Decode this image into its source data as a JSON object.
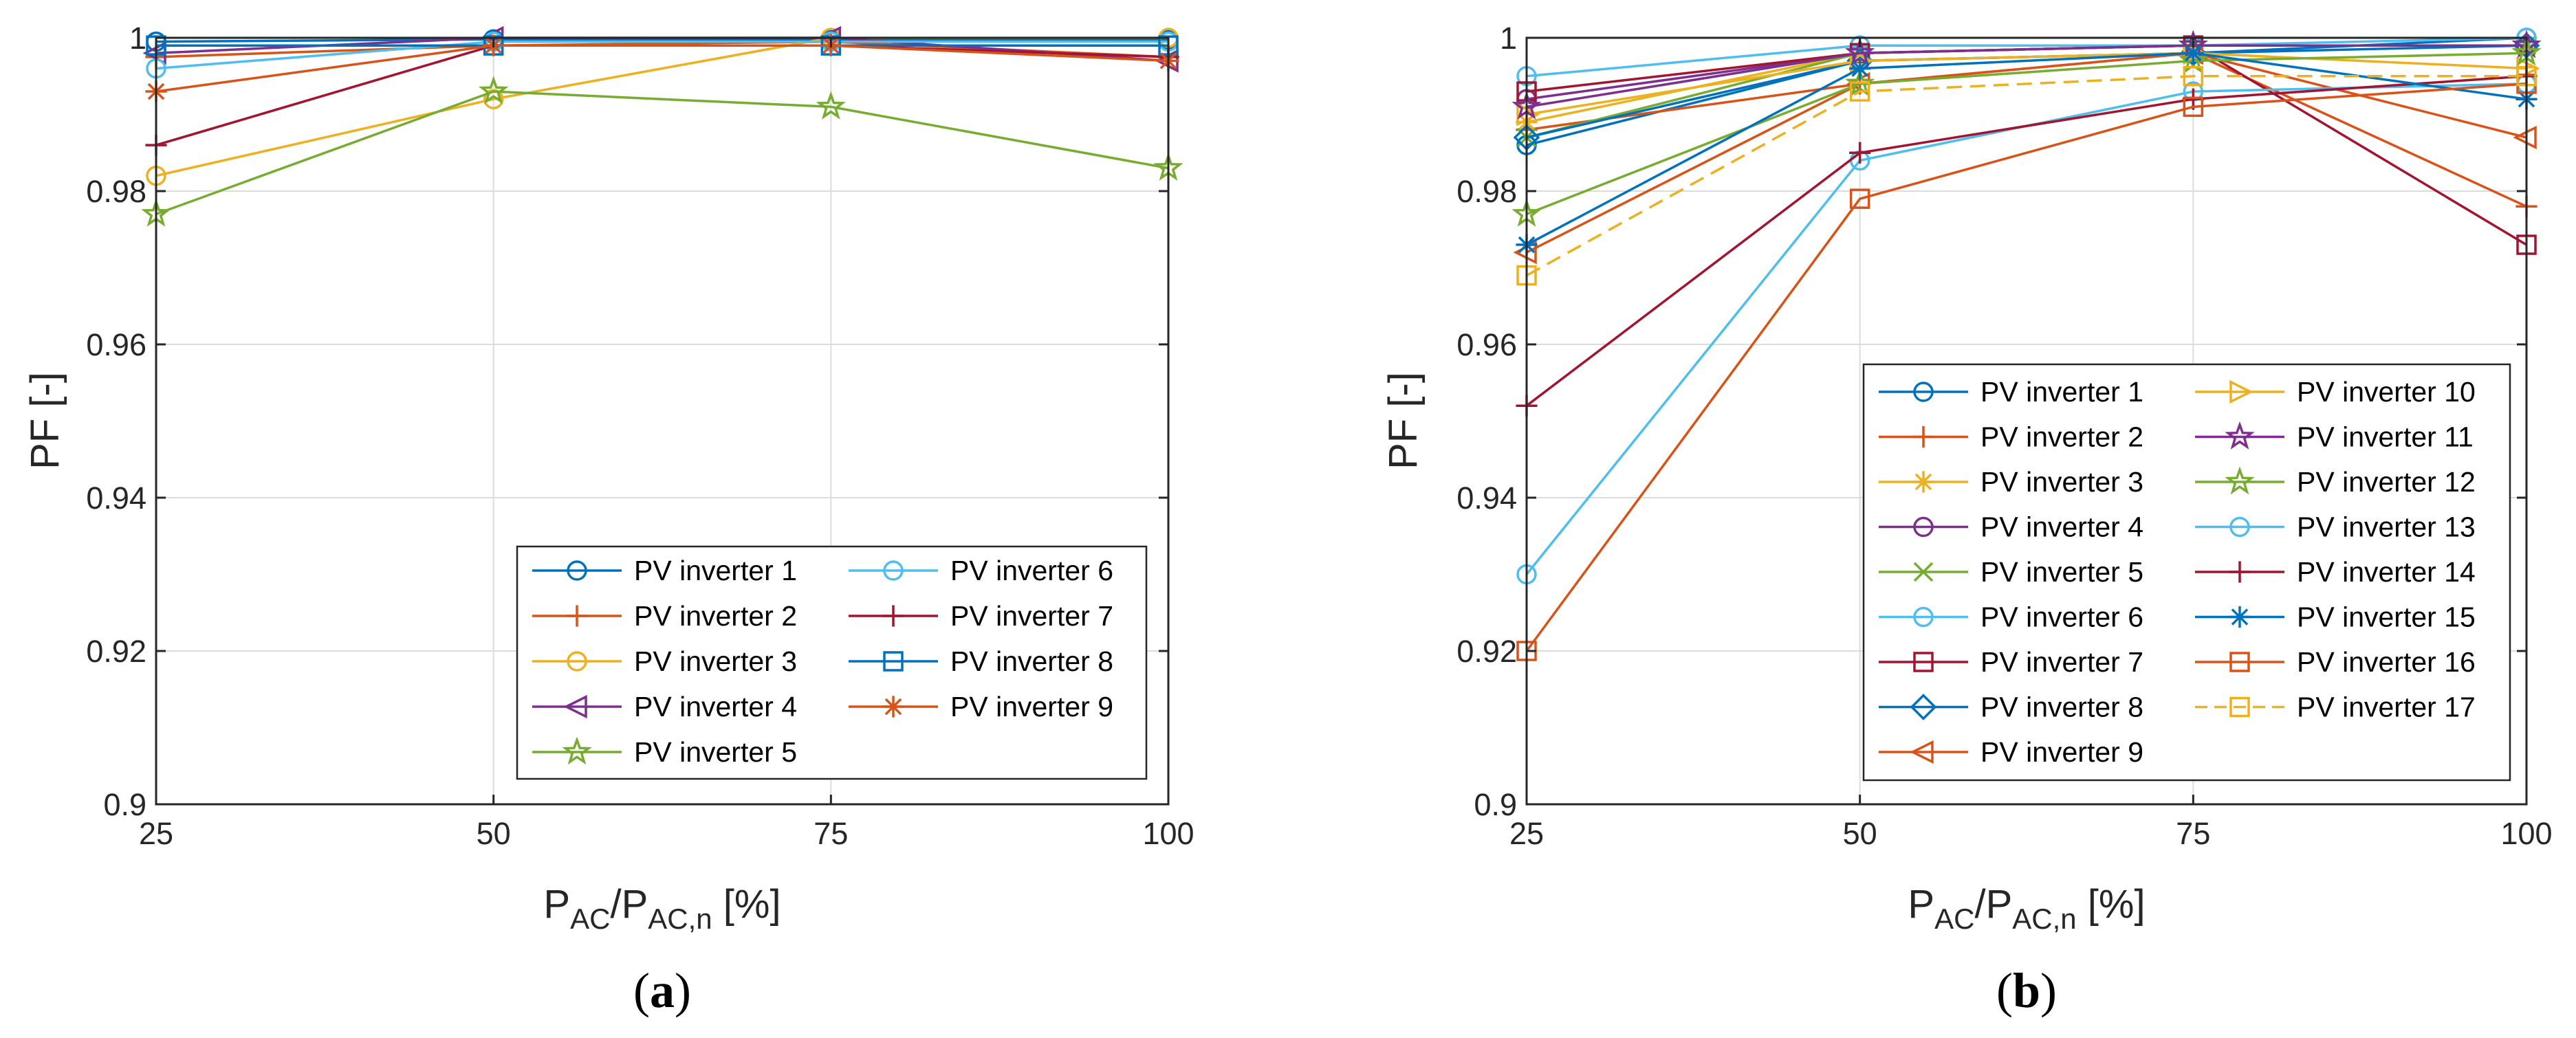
{
  "figure": {
    "captions": [
      {
        "open": "(",
        "letter": "a",
        "close": ")"
      },
      {
        "open": "(",
        "letter": "b",
        "close": ")"
      }
    ]
  },
  "chart_data": [
    {
      "type": "line",
      "panel": "a",
      "ylabel": "PF [-]",
      "xlabel": {
        "main": "P",
        "sub1": "AC",
        "sep": "/P",
        "sub2": "AC,n",
        "unit": " [%]"
      },
      "x": [
        25,
        50,
        75,
        100
      ],
      "xticks": [
        "25",
        "50",
        "75",
        "100"
      ],
      "yticks": [
        "0.9",
        "0.92",
        "0.94",
        "0.96",
        "0.98",
        "1"
      ],
      "xlim": [
        25,
        100
      ],
      "ylim": [
        0.9,
        1
      ],
      "grid": true,
      "legend_position": "bottom-right",
      "legend_columns": 2,
      "series": [
        {
          "name": "PV inverter 1",
          "color": "#0072BD",
          "marker": "circle",
          "values": [
            0.9995,
            0.9998,
            0.9998,
            0.9998
          ]
        },
        {
          "name": "PV inverter 2",
          "color": "#D95319",
          "marker": "plus",
          "values": [
            0.9975,
            0.999,
            0.9995,
            0.9975
          ]
        },
        {
          "name": "PV inverter 3",
          "color": "#EDB120",
          "marker": "circle",
          "values": [
            0.982,
            0.992,
            1.0,
            1.0
          ]
        },
        {
          "name": "PV inverter 4",
          "color": "#7E2F8E",
          "marker": "triangle-left",
          "values": [
            0.998,
            1.0,
            1.0,
            0.997
          ]
        },
        {
          "name": "PV inverter 5",
          "color": "#77AC30",
          "marker": "pentagram",
          "values": [
            0.977,
            0.993,
            0.991,
            0.983
          ]
        },
        {
          "name": "PV inverter 6",
          "color": "#4DBEEE",
          "marker": "circle",
          "values": [
            0.996,
            0.9995,
            0.9995,
            0.9995
          ]
        },
        {
          "name": "PV inverter 7",
          "color": "#A2142F",
          "marker": "plus",
          "values": [
            0.986,
            0.999,
            0.999,
            0.9975
          ]
        },
        {
          "name": "PV inverter 8",
          "color": "#0072BD",
          "marker": "square",
          "values": [
            0.999,
            0.999,
            0.999,
            0.999
          ]
        },
        {
          "name": "PV inverter 9",
          "color": "#D95319",
          "marker": "asterisk",
          "values": [
            0.993,
            0.999,
            0.999,
            0.997
          ]
        }
      ]
    },
    {
      "type": "line",
      "panel": "b",
      "ylabel": "PF [-]",
      "xlabel": {
        "main": "P",
        "sub1": "AC",
        "sep": "/P",
        "sub2": "AC,n",
        "unit": " [%]"
      },
      "x": [
        25,
        50,
        75,
        100
      ],
      "xticks": [
        "25",
        "50",
        "75",
        "100"
      ],
      "yticks": [
        "0.9",
        "0.92",
        "0.94",
        "0.96",
        "0.98",
        "1"
      ],
      "xlim": [
        25,
        100
      ],
      "ylim": [
        0.9,
        1
      ],
      "grid": true,
      "legend_position": "center-right",
      "legend_columns": 2,
      "series": [
        {
          "name": "PV inverter 1",
          "color": "#0072BD",
          "marker": "circle",
          "values": [
            0.986,
            0.997,
            0.998,
            1.0
          ]
        },
        {
          "name": "PV inverter 2",
          "color": "#D95319",
          "marker": "plus",
          "values": [
            0.988,
            0.994,
            0.998,
            0.978
          ]
        },
        {
          "name": "PV inverter 3",
          "color": "#EDB120",
          "marker": "asterisk",
          "values": [
            0.989,
            0.998,
            0.999,
            0.999
          ]
        },
        {
          "name": "PV inverter 4",
          "color": "#7E2F8E",
          "marker": "circle",
          "values": [
            0.992,
            0.998,
            0.999,
            0.999
          ]
        },
        {
          "name": "PV inverter 5",
          "color": "#77AC30",
          "marker": "x",
          "values": [
            0.987,
            0.998,
            0.999,
            0.999
          ]
        },
        {
          "name": "PV inverter 6",
          "color": "#4DBEEE",
          "marker": "circle",
          "values": [
            0.995,
            0.999,
            0.999,
            1.0
          ]
        },
        {
          "name": "PV inverter 7",
          "color": "#A2142F",
          "marker": "square",
          "values": [
            0.993,
            0.998,
            0.999,
            0.973
          ]
        },
        {
          "name": "PV inverter 8",
          "color": "#0072BD",
          "marker": "diamond",
          "values": [
            0.987,
            0.997,
            0.998,
            0.999
          ]
        },
        {
          "name": "PV inverter 9",
          "color": "#D95319",
          "marker": "triangle-left",
          "values": [
            0.972,
            0.994,
            0.998,
            0.987
          ]
        },
        {
          "name": "PV inverter 10",
          "color": "#EDB120",
          "marker": "triangle-right",
          "values": [
            0.99,
            0.997,
            0.998,
            0.996
          ]
        },
        {
          "name": "PV inverter 11",
          "color": "#7E2F8E",
          "marker": "pentagram",
          "values": [
            0.991,
            0.998,
            0.999,
            0.999
          ]
        },
        {
          "name": "PV inverter 12",
          "color": "#77AC30",
          "marker": "pentagram",
          "values": [
            0.977,
            0.994,
            0.997,
            0.998
          ]
        },
        {
          "name": "PV inverter 13",
          "color": "#4DBEEE",
          "marker": "circle",
          "values": [
            0.93,
            0.984,
            0.993,
            0.994
          ]
        },
        {
          "name": "PV inverter 14",
          "color": "#A2142F",
          "marker": "plus",
          "values": [
            0.952,
            0.985,
            0.992,
            0.995
          ]
        },
        {
          "name": "PV inverter 15",
          "color": "#0072BD",
          "marker": "asterisk",
          "values": [
            0.973,
            0.996,
            0.998,
            0.992
          ]
        },
        {
          "name": "PV inverter 16",
          "color": "#D95319",
          "marker": "square",
          "values": [
            0.92,
            0.979,
            0.991,
            0.994
          ]
        },
        {
          "name": "PV inverter 17",
          "color": "#EDB120",
          "marker": "square",
          "dashed": true,
          "values": [
            0.969,
            0.993,
            0.995,
            0.995
          ]
        }
      ]
    }
  ]
}
